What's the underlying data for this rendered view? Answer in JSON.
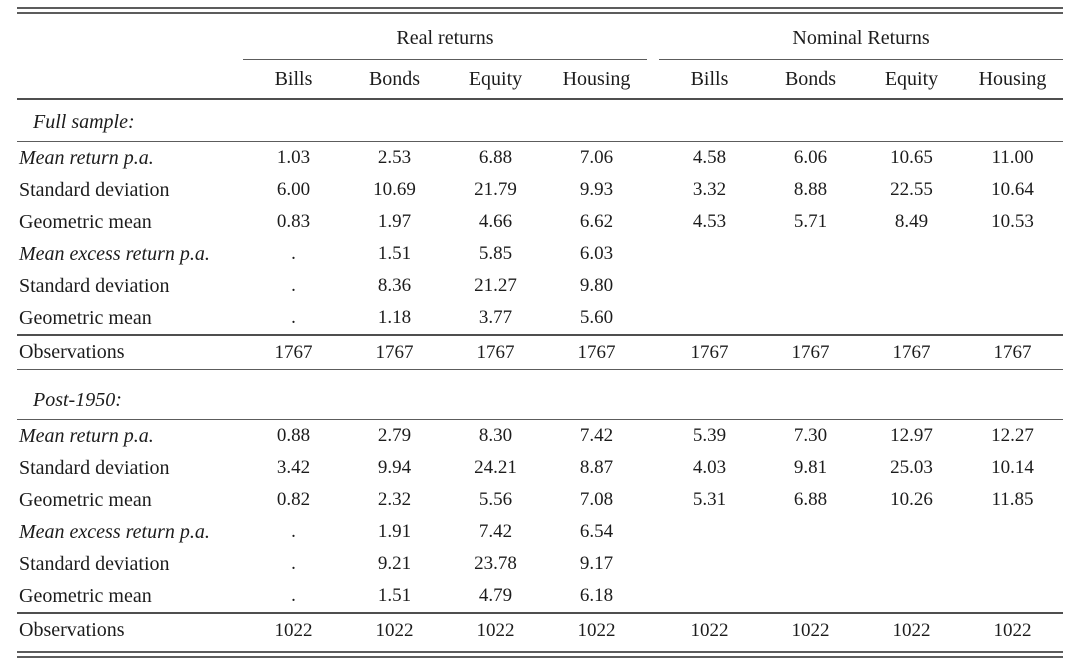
{
  "table": {
    "groups": [
      {
        "label": "Real returns"
      },
      {
        "label": "Nominal Returns"
      }
    ],
    "columns": [
      "Bills",
      "Bonds",
      "Equity",
      "Housing",
      "Bills",
      "Bonds",
      "Equity",
      "Housing"
    ],
    "sections": [
      {
        "title": "Full sample:",
        "rows": [
          {
            "label": "Mean return p.a.",
            "italic": true,
            "values": [
              "1.03",
              "2.53",
              "6.88",
              "7.06",
              "4.58",
              "6.06",
              "10.65",
              "11.00"
            ]
          },
          {
            "label": "Standard deviation",
            "italic": false,
            "values": [
              "6.00",
              "10.69",
              "21.79",
              "9.93",
              "3.32",
              "8.88",
              "22.55",
              "10.64"
            ]
          },
          {
            "label": "Geometric mean",
            "italic": false,
            "values": [
              "0.83",
              "1.97",
              "4.66",
              "6.62",
              "4.53",
              "5.71",
              "8.49",
              "10.53"
            ]
          },
          {
            "label": "Mean excess return p.a.",
            "italic": true,
            "values": [
              ".",
              "1.51",
              "5.85",
              "6.03",
              "",
              "",
              "",
              ""
            ]
          },
          {
            "label": "Standard deviation",
            "italic": false,
            "values": [
              ".",
              "8.36",
              "21.27",
              "9.80",
              "",
              "",
              "",
              ""
            ]
          },
          {
            "label": "Geometric mean",
            "italic": false,
            "values": [
              ".",
              "1.18",
              "3.77",
              "5.60",
              "",
              "",
              "",
              ""
            ]
          }
        ],
        "observations": {
          "label": "Observations",
          "values": [
            "1767",
            "1767",
            "1767",
            "1767",
            "1767",
            "1767",
            "1767",
            "1767"
          ]
        }
      },
      {
        "title": "Post-1950:",
        "rows": [
          {
            "label": "Mean return p.a.",
            "italic": true,
            "values": [
              "0.88",
              "2.79",
              "8.30",
              "7.42",
              "5.39",
              "7.30",
              "12.97",
              "12.27"
            ]
          },
          {
            "label": "Standard deviation",
            "italic": false,
            "values": [
              "3.42",
              "9.94",
              "24.21",
              "8.87",
              "4.03",
              "9.81",
              "25.03",
              "10.14"
            ]
          },
          {
            "label": "Geometric mean",
            "italic": false,
            "values": [
              "0.82",
              "2.32",
              "5.56",
              "7.08",
              "5.31",
              "6.88",
              "10.26",
              "11.85"
            ]
          },
          {
            "label": "Mean excess return p.a.",
            "italic": true,
            "values": [
              ".",
              "1.91",
              "7.42",
              "6.54",
              "",
              "",
              "",
              ""
            ]
          },
          {
            "label": "Standard deviation",
            "italic": false,
            "values": [
              ".",
              "9.21",
              "23.78",
              "9.17",
              "",
              "",
              "",
              ""
            ]
          },
          {
            "label": "Geometric mean",
            "italic": false,
            "values": [
              ".",
              "1.51",
              "4.79",
              "6.18",
              "",
              "",
              "",
              ""
            ]
          }
        ],
        "observations": {
          "label": "Observations",
          "values": [
            "1022",
            "1022",
            "1022",
            "1022",
            "1022",
            "1022",
            "1022",
            "1022"
          ]
        }
      }
    ]
  }
}
